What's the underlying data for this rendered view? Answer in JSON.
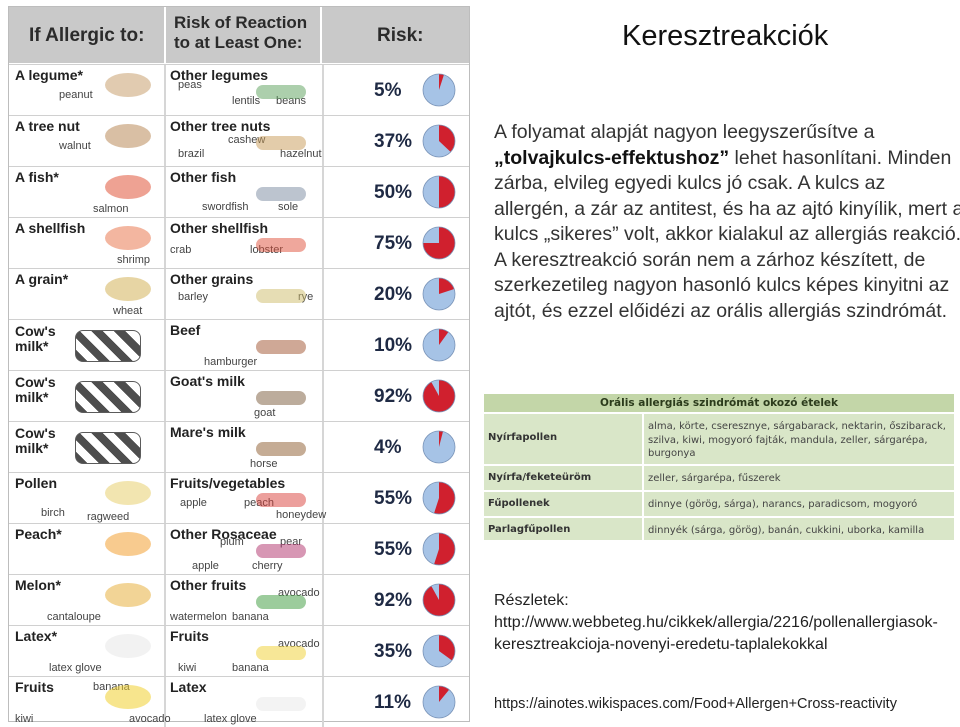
{
  "slide": {
    "title": "Keresztreakciók",
    "paragraph": {
      "p1": "A folyamat alapját nagyon leegyszerűsítve a ",
      "emphasis": "„tolvajkulcs-effektushoz”",
      "p2": " lehet hasonlítani. Minden zárba, elvileg egyedi kulcs jó csak. A kulcs az allergén, a zár az antitest, és ha az ajtó kinyílik, mert a kulcs „sikeres” volt, akkor kialakul az allergiás reakció. A keresztreakció során nem a zárhoz készített, de szerkezetileg nagyon hasonló kulcs képes kinyitni az ajtót, és ezzel előidézi az orális allergiás szindrómát."
    },
    "source1": "Részletek: http://www.webbeteg.hu/cikkek/allergia/2216/pollenallergiasok-keresztreakcioja-novenyi-eredetu-taplalekokkal",
    "source2": "https://ainotes.wikispaces.com/Food+Allergen+Cross-reactivity"
  },
  "oral_table": {
    "title": "Orális allergiás szindrómát okozó ételek",
    "rows": [
      {
        "key": "Nyírfapollen",
        "value": "alma, körte, cseresznye, sárgabarack, nektarin, őszibarack, szilva, kiwi, mogyoró fajták, mandula, zeller, sárgarépa, burgonya"
      },
      {
        "key": "Nyírfa/feketeüröm",
        "value": "zeller, sárgarépa, fűszerek"
      },
      {
        "key": "Fűpollenek",
        "value": "dinnye (görög, sárga), narancs, paradicsom, mogyoró"
      },
      {
        "key": "Parlagfűpollen",
        "value": "dinnyék (sárga, görög), banán, cukkini, uborka, kamilla"
      }
    ]
  },
  "chart": {
    "headers": {
      "col1": "If Allergic to:",
      "col2a": "Risk of Reaction",
      "col2b": "to at Least One:",
      "col3": "Risk:"
    },
    "colors": {
      "pie_red": "#d0202e",
      "pie_blue": "#a6c3e6",
      "pct_text": "#1f2a44"
    },
    "rows": [
      {
        "allergen": "A legume*",
        "allergen_sub": [
          "peanut"
        ],
        "reaction": "Other legumes",
        "reaction_sub": [
          "peas",
          "lentils",
          "beans"
        ],
        "risk_label": "5%",
        "risk_value": 5
      },
      {
        "allergen": "A tree nut",
        "allergen_sub": [
          "walnut"
        ],
        "reaction": "Other tree nuts",
        "reaction_sub": [
          "brazil",
          "cashew",
          "hazelnut"
        ],
        "risk_label": "37%",
        "risk_value": 37
      },
      {
        "allergen": "A fish*",
        "allergen_sub": [
          "salmon"
        ],
        "reaction": "Other fish",
        "reaction_sub": [
          "swordfish",
          "sole"
        ],
        "risk_label": "50%",
        "risk_value": 50
      },
      {
        "allergen": "A shellfish",
        "allergen_sub": [
          "shrimp"
        ],
        "reaction": "Other shellfish",
        "reaction_sub": [
          "crab",
          "lobster"
        ],
        "risk_label": "75%",
        "risk_value": 75
      },
      {
        "allergen": "A grain*",
        "allergen_sub": [
          "wheat"
        ],
        "reaction": "Other grains",
        "reaction_sub": [
          "barley",
          "rye"
        ],
        "risk_label": "20%",
        "risk_value": 20
      },
      {
        "allergen": "Cow's milk*",
        "allergen_sub": [],
        "reaction": "Beef",
        "reaction_sub": [
          "hamburger"
        ],
        "risk_label": "10%",
        "risk_value": 10
      },
      {
        "allergen": "Cow's milk*",
        "allergen_sub": [],
        "reaction": "Goat's milk",
        "reaction_sub": [
          "goat"
        ],
        "risk_label": "92%",
        "risk_value": 92
      },
      {
        "allergen": "Cow's milk*",
        "allergen_sub": [],
        "reaction": "Mare's milk",
        "reaction_sub": [
          "horse"
        ],
        "risk_label": "4%",
        "risk_value": 4
      },
      {
        "allergen": "Pollen",
        "allergen_sub": [
          "birch",
          "ragweed"
        ],
        "reaction": "Fruits/vegetables",
        "reaction_sub": [
          "apple",
          "peach",
          "honeydew"
        ],
        "risk_label": "55%",
        "risk_value": 55
      },
      {
        "allergen": "Peach*",
        "allergen_sub": [],
        "reaction": "Other Rosaceae",
        "reaction_sub": [
          "plum",
          "pear",
          "apple",
          "cherry"
        ],
        "risk_label": "55%",
        "risk_value": 55
      },
      {
        "allergen": "Melon*",
        "allergen_sub": [
          "cantaloupe"
        ],
        "reaction": "Other fruits",
        "reaction_sub": [
          "avocado",
          "watermelon",
          "banana"
        ],
        "risk_label": "92%",
        "risk_value": 92
      },
      {
        "allergen": "Latex*",
        "allergen_sub": [
          "latex glove"
        ],
        "reaction": "Fruits",
        "reaction_sub": [
          "avocado",
          "kiwi",
          "banana"
        ],
        "risk_label": "35%",
        "risk_value": 35
      },
      {
        "allergen": "Fruits",
        "allergen_sub": [
          "banana",
          "kiwi",
          "avocado"
        ],
        "reaction": "Latex",
        "reaction_sub": [
          "latex glove"
        ],
        "risk_label": "11%",
        "risk_value": 11
      }
    ]
  }
}
